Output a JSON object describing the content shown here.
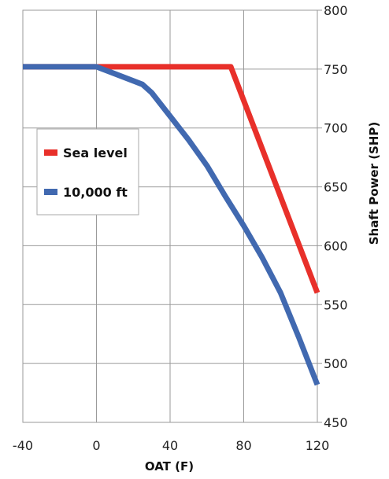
{
  "chart_data": {
    "type": "line",
    "xlabel": "OAT (F)",
    "ylabel": "Shaft Power (SHP)",
    "xlim": [
      -40,
      120
    ],
    "ylim": [
      450,
      800
    ],
    "x_ticks": [
      -40,
      0,
      40,
      80,
      120
    ],
    "y_ticks": [
      450,
      500,
      550,
      600,
      650,
      700,
      750,
      800
    ],
    "y_axis_side": "right",
    "grid": true,
    "legend_placement": "left",
    "series": [
      {
        "name": "Sea level",
        "color": "#e8302a",
        "x": [
          -40,
          0,
          40,
          73,
          120
        ],
        "y": [
          752,
          752,
          752,
          752,
          560
        ]
      },
      {
        "name": "10,000 ft",
        "color": "#4169b0",
        "x": [
          -40,
          0,
          5,
          10,
          20,
          25,
          30,
          40,
          50,
          60,
          70,
          80,
          90,
          100,
          110,
          120
        ],
        "y": [
          752,
          752,
          749,
          746,
          740,
          737,
          730,
          710,
          690,
          668,
          642,
          617,
          590,
          560,
          522,
          482
        ]
      }
    ]
  }
}
